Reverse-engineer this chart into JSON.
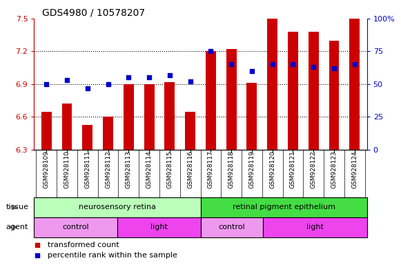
{
  "title": "GDS4980 / 10578207",
  "samples": [
    "GSM928109",
    "GSM928110",
    "GSM928111",
    "GSM928112",
    "GSM928113",
    "GSM928114",
    "GSM928115",
    "GSM928116",
    "GSM928117",
    "GSM928118",
    "GSM928119",
    "GSM928120",
    "GSM928121",
    "GSM928122",
    "GSM928123",
    "GSM928124"
  ],
  "bar_values": [
    6.65,
    6.72,
    6.53,
    6.6,
    6.9,
    6.9,
    6.92,
    6.65,
    7.2,
    7.22,
    6.91,
    7.5,
    7.38,
    7.38,
    7.3,
    7.5
  ],
  "dot_values": [
    50,
    53,
    47,
    50,
    55,
    55,
    57,
    52,
    75,
    65,
    60,
    65,
    65,
    63,
    62,
    65
  ],
  "ylim_left": [
    6.3,
    7.5
  ],
  "ylim_right": [
    0,
    100
  ],
  "yticks_left": [
    6.3,
    6.6,
    6.9,
    7.2,
    7.5
  ],
  "yticks_right": [
    0,
    25,
    50,
    75,
    100
  ],
  "ytick_labels_left": [
    "6.3",
    "6.6",
    "6.9",
    "7.2",
    "7.5"
  ],
  "ytick_labels_right": [
    "0",
    "25",
    "50",
    "75",
    "100%"
  ],
  "hlines": [
    6.6,
    6.9,
    7.2
  ],
  "bar_color": "#cc0000",
  "dot_color": "#0000cc",
  "bar_width": 0.5,
  "tissue_groups": [
    {
      "label": "neurosensory retina",
      "start": 0,
      "end": 8,
      "color": "#bbffbb"
    },
    {
      "label": "retinal pigment epithelium",
      "start": 8,
      "end": 16,
      "color": "#44dd44"
    }
  ],
  "agent_groups": [
    {
      "label": "control",
      "start": 0,
      "end": 4,
      "color": "#ee99ee"
    },
    {
      "label": "light",
      "start": 4,
      "end": 8,
      "color": "#ee44ee"
    },
    {
      "label": "control",
      "start": 8,
      "end": 11,
      "color": "#ee99ee"
    },
    {
      "label": "light",
      "start": 11,
      "end": 16,
      "color": "#ee44ee"
    }
  ],
  "legend_items": [
    {
      "color": "#cc0000",
      "label": "transformed count"
    },
    {
      "color": "#0000cc",
      "label": "percentile rank within the sample"
    }
  ],
  "bg_color": "#ffffff",
  "left_axis_color": "#cc0000",
  "right_axis_color": "#0000cc"
}
